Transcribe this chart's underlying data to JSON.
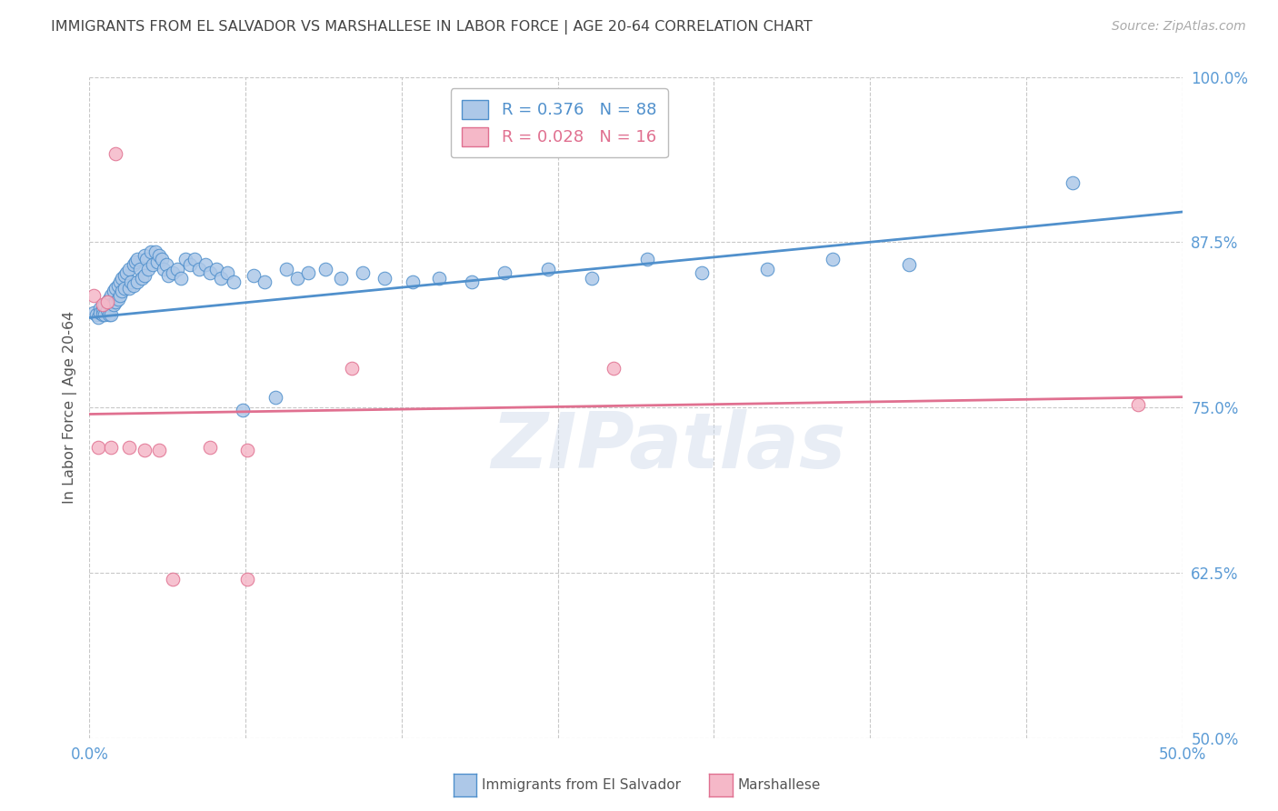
{
  "title": "IMMIGRANTS FROM EL SALVADOR VS MARSHALLESE IN LABOR FORCE | AGE 20-64 CORRELATION CHART",
  "source": "Source: ZipAtlas.com",
  "ylabel": "In Labor Force | Age 20-64",
  "ytick_values": [
    0.5,
    0.625,
    0.75,
    0.875,
    1.0
  ],
  "xlim": [
    0.0,
    0.5
  ],
  "ylim": [
    0.5,
    1.0
  ],
  "blue_R": 0.376,
  "blue_N": 88,
  "pink_R": 0.028,
  "pink_N": 16,
  "blue_color": "#adc8e8",
  "blue_edge_color": "#5090cc",
  "pink_color": "#f5b8c8",
  "pink_edge_color": "#e07090",
  "blue_label": "Immigrants from El Salvador",
  "pink_label": "Marshallese",
  "watermark": "ZIPatlas",
  "background_color": "#ffffff",
  "grid_color": "#c8c8c8",
  "tick_label_color": "#5b9bd5",
  "title_color": "#444444",
  "blue_scatter_x": [
    0.002,
    0.003,
    0.004,
    0.005,
    0.005,
    0.006,
    0.006,
    0.007,
    0.007,
    0.008,
    0.008,
    0.009,
    0.009,
    0.01,
    0.01,
    0.01,
    0.011,
    0.011,
    0.012,
    0.012,
    0.013,
    0.013,
    0.014,
    0.014,
    0.015,
    0.015,
    0.016,
    0.016,
    0.017,
    0.018,
    0.018,
    0.019,
    0.02,
    0.02,
    0.021,
    0.022,
    0.022,
    0.023,
    0.024,
    0.025,
    0.025,
    0.026,
    0.027,
    0.028,
    0.029,
    0.03,
    0.031,
    0.032,
    0.033,
    0.034,
    0.035,
    0.036,
    0.038,
    0.04,
    0.042,
    0.044,
    0.046,
    0.048,
    0.05,
    0.053,
    0.055,
    0.058,
    0.06,
    0.063,
    0.066,
    0.07,
    0.075,
    0.08,
    0.085,
    0.09,
    0.095,
    0.1,
    0.108,
    0.115,
    0.125,
    0.135,
    0.148,
    0.16,
    0.175,
    0.19,
    0.21,
    0.23,
    0.255,
    0.28,
    0.31,
    0.34,
    0.375,
    0.45
  ],
  "blue_scatter_y": [
    0.822,
    0.82,
    0.818,
    0.825,
    0.822,
    0.824,
    0.82,
    0.828,
    0.82,
    0.83,
    0.824,
    0.832,
    0.82,
    0.835,
    0.828,
    0.82,
    0.838,
    0.828,
    0.84,
    0.83,
    0.842,
    0.832,
    0.845,
    0.835,
    0.848,
    0.838,
    0.85,
    0.84,
    0.852,
    0.855,
    0.84,
    0.845,
    0.858,
    0.842,
    0.86,
    0.862,
    0.845,
    0.855,
    0.848,
    0.865,
    0.85,
    0.862,
    0.855,
    0.868,
    0.858,
    0.868,
    0.86,
    0.865,
    0.862,
    0.855,
    0.858,
    0.85,
    0.852,
    0.855,
    0.848,
    0.862,
    0.858,
    0.862,
    0.855,
    0.858,
    0.852,
    0.855,
    0.848,
    0.852,
    0.845,
    0.748,
    0.85,
    0.845,
    0.758,
    0.855,
    0.848,
    0.852,
    0.855,
    0.848,
    0.852,
    0.848,
    0.845,
    0.848,
    0.845,
    0.852,
    0.855,
    0.848,
    0.862,
    0.852,
    0.855,
    0.862,
    0.858,
    0.92
  ],
  "pink_scatter_x": [
    0.002,
    0.004,
    0.006,
    0.008,
    0.01,
    0.012,
    0.018,
    0.025,
    0.032,
    0.038,
    0.055,
    0.072,
    0.12,
    0.24,
    0.48,
    0.072
  ],
  "pink_scatter_y": [
    0.835,
    0.72,
    0.828,
    0.83,
    0.72,
    0.942,
    0.72,
    0.718,
    0.718,
    0.62,
    0.72,
    0.62,
    0.78,
    0.78,
    0.752,
    0.718
  ],
  "blue_trend_x0": 0.0,
  "blue_trend_x1": 0.5,
  "blue_trend_y0": 0.818,
  "blue_trend_y1": 0.898,
  "pink_trend_x0": 0.0,
  "pink_trend_x1": 0.5,
  "pink_trend_y0": 0.745,
  "pink_trend_y1": 0.758
}
